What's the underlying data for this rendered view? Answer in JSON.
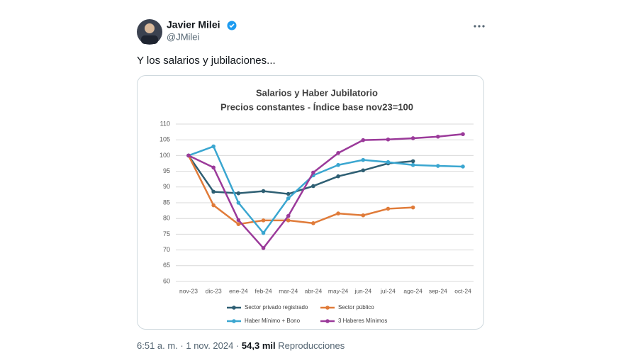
{
  "author": {
    "name": "Javier Milei",
    "handle": "@JMilei"
  },
  "post_text": "Y los salarios y jubilaciones...",
  "footer": {
    "time": "6:51 a. m. · 1 nov. 2024 ·",
    "views": "54,3 mil",
    "views_label": "Reproducciones"
  },
  "chart_data": {
    "type": "line",
    "title": "Salarios y Haber Jubilatorio",
    "subtitle": "Precios constantes - Índice base nov23=100",
    "categories": [
      "nov-23",
      "dic-23",
      "ene-24",
      "feb-24",
      "mar-24",
      "abr-24",
      "may-24",
      "jun-24",
      "jul-24",
      "ago-24",
      "sep-24",
      "oct-24"
    ],
    "series": [
      {
        "name": "Sector privado registrado",
        "color": "#2e5f73",
        "values": [
          100,
          88.5,
          88,
          88.7,
          87.8,
          90.3,
          93.4,
          95.3,
          97.5,
          98.2,
          null,
          null
        ]
      },
      {
        "name": "Sector público",
        "color": "#e07b39",
        "values": [
          100,
          84.2,
          78.2,
          79.4,
          79.4,
          78.5,
          81.6,
          81,
          83.1,
          83.5,
          null,
          null
        ]
      },
      {
        "name": "Haber Mínimo + Bono",
        "color": "#3aa6d0",
        "values": [
          100,
          102.9,
          85,
          75.4,
          86.4,
          93.7,
          97,
          98.6,
          97.9,
          97,
          96.7,
          96.5
        ]
      },
      {
        "name": "3 Haberes Mínimos",
        "color": "#9b3a9a",
        "values": [
          100,
          96.2,
          79.5,
          70.6,
          80.8,
          94.6,
          100.8,
          104.9,
          105.1,
          105.5,
          106,
          106.8
        ]
      }
    ],
    "ylim": [
      60,
      110
    ],
    "yticks": [
      60,
      65,
      70,
      75,
      80,
      85,
      90,
      95,
      100,
      105,
      110
    ],
    "grid": true,
    "legend": "bottom"
  }
}
